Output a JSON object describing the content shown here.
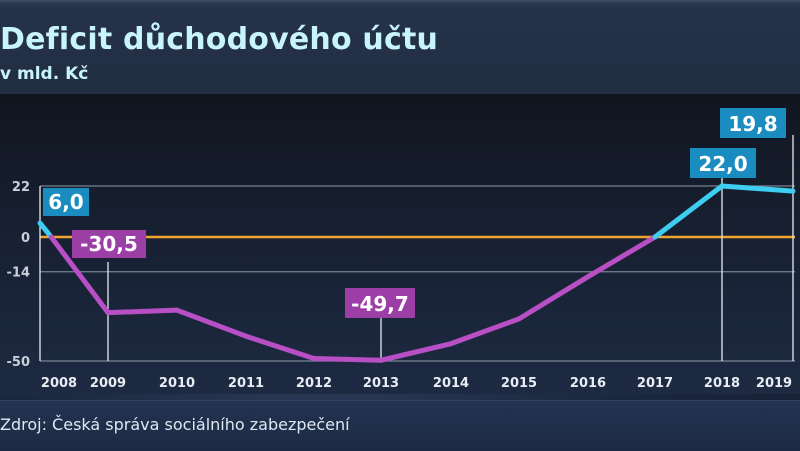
{
  "header": {
    "title": "Deficit důchodového účtu",
    "subtitle": "v mld. Kč"
  },
  "footer": {
    "source": "Zdroj: Česká správa sociálního zabezpečení"
  },
  "colors": {
    "positive_line": "#3ccdf0",
    "negative_line": "#b94fc4",
    "zero_line": "#f2a431",
    "positive_label_bg": "#1a8cc0",
    "negative_label_bg": "#9b3ea6",
    "gridline": "#8a93a3",
    "title_text": "#c8f4fb"
  },
  "chart_data": {
    "type": "line",
    "title": "Deficit důchodového účtu",
    "subtitle": "v mld. Kč",
    "xlabel": "",
    "ylabel": "mld. Kč",
    "categories": [
      "2008",
      "2009",
      "2010",
      "2011",
      "2012",
      "2013",
      "2014",
      "2015",
      "2016",
      "2017",
      "2018",
      "2019"
    ],
    "values": [
      6.0,
      -30.5,
      -29.5,
      -40.0,
      -49.0,
      -49.7,
      -43.0,
      -33.0,
      -16.0,
      0.0,
      22.0,
      19.8
    ],
    "labeled_points": [
      {
        "year": "2008",
        "value": 6.0,
        "label": "6,0"
      },
      {
        "year": "2009",
        "value": -30.5,
        "label": "-30,5"
      },
      {
        "year": "2013",
        "value": -49.7,
        "label": "-49,7"
      },
      {
        "year": "2018",
        "value": 22.0,
        "label": "22,0"
      },
      {
        "year": "2019",
        "value": 19.8,
        "label": "19,8"
      }
    ],
    "yticks": [
      22,
      0,
      -14,
      -50
    ],
    "ytick_labels": [
      "22",
      "0",
      "-14",
      "-50"
    ],
    "ylim": [
      -50,
      22
    ],
    "grid": true,
    "reference_line": 0,
    "legend": null,
    "source": "Zdroj: Česká správa sociálního zabezpečení"
  }
}
